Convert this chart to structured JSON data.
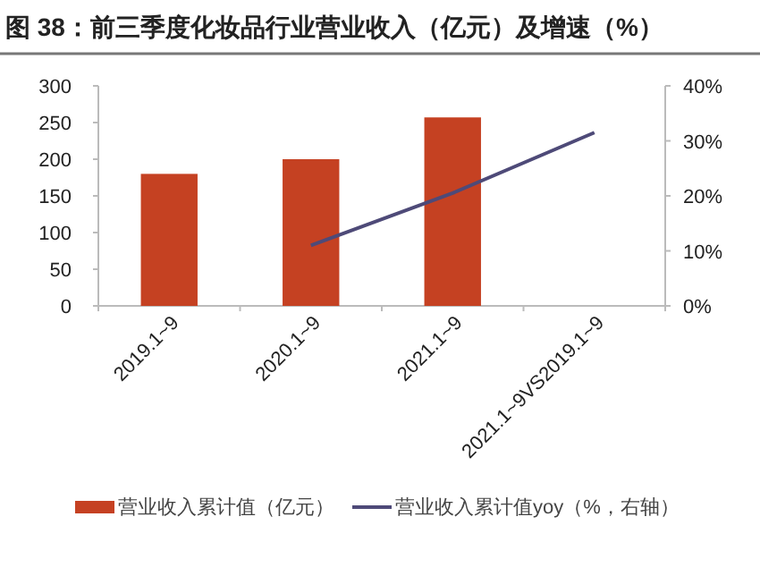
{
  "chart_data": {
    "type": "bar",
    "title": "图 38：前三季度化妆品行业营业收入（亿元）及增速（%）",
    "categories": [
      "2019.1~9",
      "2020.1~9",
      "2021.1~9",
      "2021.1~9VS2019.1~9"
    ],
    "series": [
      {
        "name": "营业收入累计值（亿元）",
        "color": "#c54122",
        "values": [
          180,
          200,
          257,
          null
        ]
      },
      {
        "name": "营业收入累计值yoy（%，右轴）",
        "type": "line",
        "axis": "y2",
        "color": "#4e4a78",
        "values": [
          null,
          11,
          20.5,
          31.5
        ]
      }
    ],
    "ylim": [
      0,
      300
    ],
    "yticks": [
      0,
      50,
      100,
      150,
      200,
      250,
      300
    ],
    "y2lim": [
      0,
      40
    ],
    "y2ticks": [
      {
        "value": 0,
        "label": "0%"
      },
      {
        "value": 10,
        "label": "10%"
      },
      {
        "value": 20,
        "label": "20%"
      },
      {
        "value": 30,
        "label": "30%"
      },
      {
        "value": 40,
        "label": "40%"
      }
    ],
    "grid": false,
    "legend": "bottom"
  }
}
